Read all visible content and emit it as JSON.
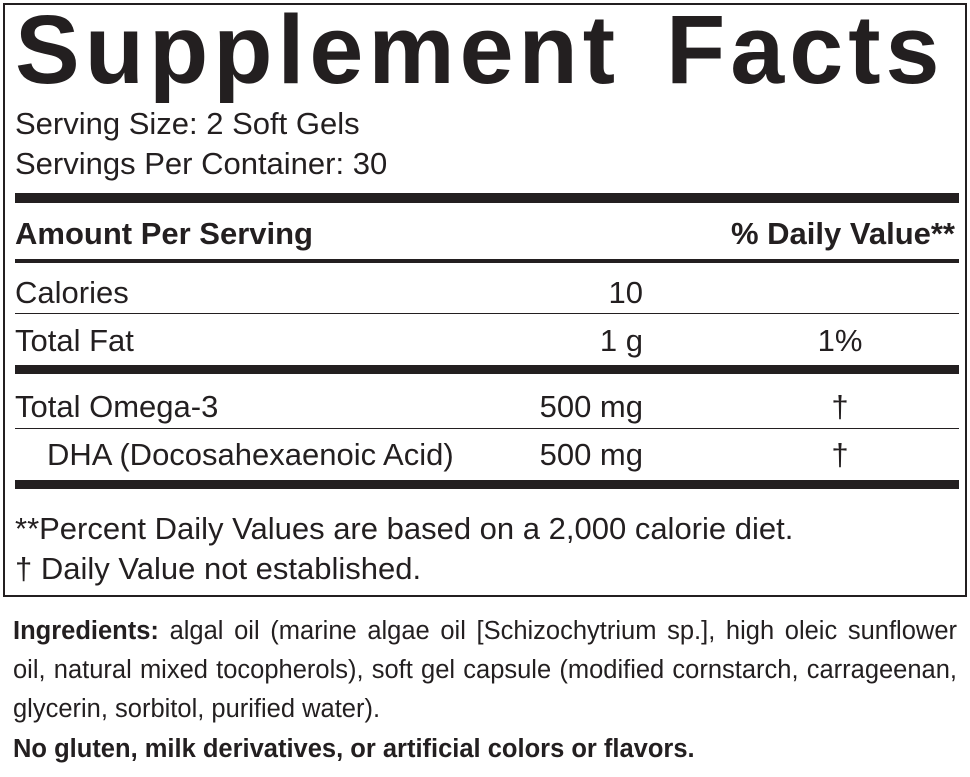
{
  "title": "Supplement Facts",
  "serving_size": "Serving Size: 2 Soft Gels",
  "servings_per_container": "Servings Per Container: 30",
  "header": {
    "amount": "Amount Per Serving",
    "daily_value": "% Daily Value**"
  },
  "rows": [
    {
      "name": "Calories",
      "amount": "10",
      "dv": ""
    },
    {
      "name": "Total Fat",
      "amount": "1 g",
      "dv": "1%"
    },
    {
      "name": "Total Omega-3",
      "amount": "500 mg",
      "dv": "†"
    },
    {
      "name": "DHA (Docosahexaenoic Acid)",
      "amount": "500 mg",
      "dv": "†"
    }
  ],
  "footnotes": [
    "**Percent Daily Values are based on a 2,000 calorie diet.",
    "† Daily Value not established."
  ],
  "ingredients": {
    "label": "Ingredients:",
    "text": "algal oil (marine algae oil [Schizochytrium sp.], high oleic sunflower oil, natural mixed tocopherols), soft gel capsule (modified cornstarch, carrageenan, glycerin, sorbitol, purified water)."
  },
  "claim": "No gluten, milk derivatives, or artificial colors or flavors."
}
